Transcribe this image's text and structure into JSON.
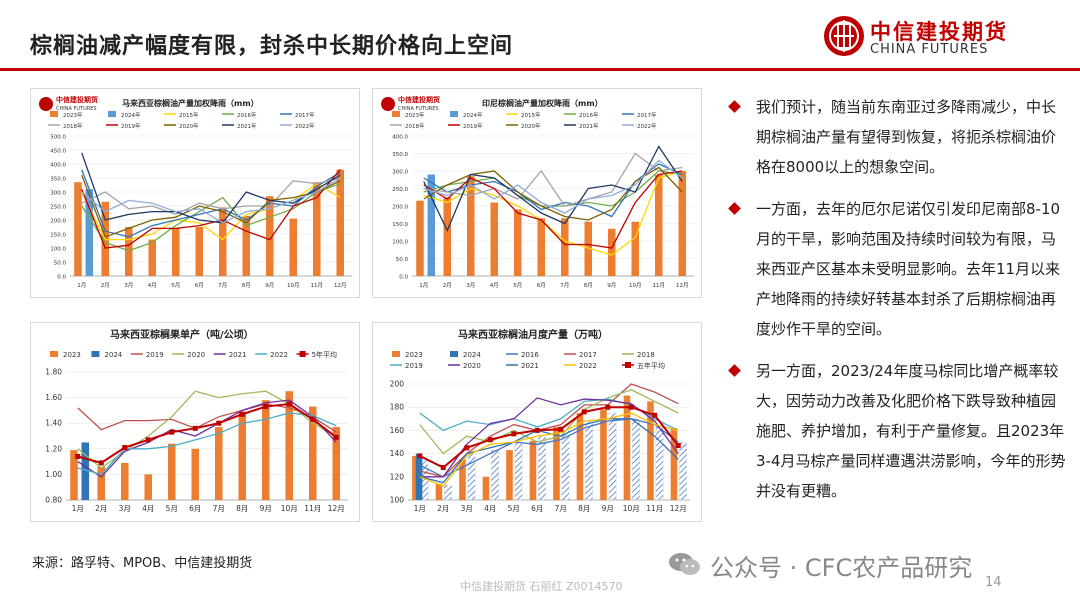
{
  "header": {
    "title": "棕榈油减产幅度有限，封杀中长期价格向上空间",
    "logo_cn": "中信建投期货",
    "logo_en": "CHINA FUTURES",
    "accent": "#c00000"
  },
  "bullets": [
    "我们预计，随当前东南亚过多降雨减少，中长期棕榈油产量有望得到恢复，将扼杀棕榈油价格在8000以上的想象空间。",
    "一方面，去年的厄尔尼诺仅引发印尼南部8-10月的干旱，影响范围及持续时间较为有限，马来西亚产区基本未受明显影响。去年11月以来产地降雨的持续好转基本封杀了后期棕榈油再度炒作干旱的空间。",
    "另一方面，2023/24年度马棕同比增产概率较大，因劳动力改善及化肥价格下跌导致种植园施肥、养护增加，有利于产量修复。且2023年3-4月马棕产量同样遭遇洪涝影响，今年的形势并没有更糟。"
  ],
  "source": "来源：路孚特、MPOB、中信建投期货",
  "footer_text": "中信建投期货  石丽红  Z0014570",
  "watermark": "公众号 · CFC农产品研究",
  "page_number": "14",
  "chart_data": [
    {
      "type": "bar",
      "title": "马来西亚棕榈油产量加权降雨（mm）",
      "logo_cn": "中信建投期货",
      "logo_en": "CHINA FUTURES",
      "categories": [
        "1月",
        "2月",
        "3月",
        "4月",
        "5月",
        "6月",
        "7月",
        "8月",
        "9月",
        "10月",
        "11月",
        "12月"
      ],
      "ylim": [
        0,
        500
      ],
      "yticks": [
        "0.0",
        "50.0",
        "100.0",
        "150.0",
        "200.0",
        "250.0",
        "300.0",
        "350.0",
        "400.0",
        "450.0",
        "500.0"
      ],
      "bars": [
        {
          "name": "2023年",
          "color": "#ED7D31",
          "values": [
            335,
            265,
            175,
            130,
            170,
            175,
            245,
            215,
            285,
            205,
            335,
            380
          ]
        },
        {
          "name": "2024年",
          "color": "#5B9BD5",
          "values": [
            310,
            null,
            null,
            null,
            null,
            null,
            null,
            null,
            null,
            null,
            null,
            null
          ]
        }
      ],
      "series": [
        {
          "name": "2015年",
          "color": "#FFD700",
          "values": [
            300,
            130,
            130,
            150,
            200,
            190,
            130,
            220,
            240,
            270,
            330,
            280
          ]
        },
        {
          "name": "2016年",
          "color": "#70AD47",
          "values": [
            250,
            120,
            90,
            120,
            180,
            230,
            280,
            180,
            210,
            240,
            300,
            330
          ]
        },
        {
          "name": "2017年",
          "color": "#2E75B6",
          "values": [
            380,
            160,
            140,
            180,
            200,
            220,
            240,
            200,
            260,
            250,
            320,
            370
          ]
        },
        {
          "name": "2018年",
          "color": "#A5A5A5",
          "values": [
            260,
            300,
            240,
            250,
            220,
            260,
            240,
            250,
            250,
            340,
            330,
            350
          ]
        },
        {
          "name": "2019年",
          "color": "#C00000",
          "values": [
            310,
            100,
            110,
            170,
            170,
            180,
            200,
            160,
            130,
            250,
            280,
            380
          ]
        },
        {
          "name": "2020年",
          "color": "#7F6000",
          "values": [
            360,
            140,
            170,
            200,
            210,
            250,
            230,
            190,
            270,
            280,
            300,
            340
          ]
        },
        {
          "name": "2021年",
          "color": "#1F3864",
          "values": [
            440,
            200,
            220,
            230,
            230,
            200,
            190,
            300,
            270,
            260,
            310,
            360
          ]
        },
        {
          "name": "2022年",
          "color": "#8FAADC",
          "values": [
            300,
            230,
            270,
            260,
            230,
            240,
            190,
            230,
            240,
            270,
            300,
            350
          ]
        }
      ]
    },
    {
      "type": "bar",
      "title": "印尼棕榈油产量加权降雨（mm）",
      "logo_cn": "中信建投期货",
      "logo_en": "CHINA FUTURES",
      "categories": [
        "1月",
        "2月",
        "3月",
        "4月",
        "5月",
        "6月",
        "7月",
        "8月",
        "9月",
        "10月",
        "11月",
        "12月"
      ],
      "ylim": [
        0,
        400
      ],
      "yticks": [
        "0.0",
        "50.0",
        "100.0",
        "150.0",
        "200.0",
        "250.0",
        "300.0",
        "350.0",
        "400.0"
      ],
      "bars": [
        {
          "name": "2023年",
          "color": "#ED7D31",
          "values": [
            215,
            225,
            285,
            210,
            190,
            165,
            165,
            155,
            135,
            155,
            290,
            300
          ]
        },
        {
          "name": "2024年",
          "color": "#5B9BD5",
          "values": [
            290,
            null,
            null,
            null,
            null,
            null,
            null,
            null,
            null,
            null,
            null,
            null
          ]
        }
      ],
      "series": [
        {
          "name": "2015年",
          "color": "#FFD700",
          "values": [
            230,
            210,
            250,
            230,
            200,
            160,
            100,
            80,
            60,
            110,
            280,
            300
          ]
        },
        {
          "name": "2016年",
          "color": "#70AD47",
          "values": [
            240,
            260,
            270,
            280,
            230,
            200,
            200,
            210,
            200,
            240,
            300,
            290
          ]
        },
        {
          "name": "2017年",
          "color": "#2E75B6",
          "values": [
            280,
            240,
            260,
            270,
            240,
            190,
            210,
            200,
            170,
            270,
            320,
            290
          ]
        },
        {
          "name": "2018年",
          "color": "#A5A5A5",
          "values": [
            250,
            240,
            230,
            250,
            220,
            300,
            200,
            220,
            240,
            350,
            300,
            310
          ]
        },
        {
          "name": "2019年",
          "color": "#C00000",
          "values": [
            260,
            220,
            280,
            250,
            180,
            160,
            90,
            90,
            80,
            210,
            290,
            300
          ]
        },
        {
          "name": "2020年",
          "color": "#7F6000",
          "values": [
            220,
            260,
            290,
            300,
            240,
            200,
            170,
            160,
            190,
            270,
            310,
            240
          ]
        },
        {
          "name": "2021年",
          "color": "#1F3864",
          "values": [
            270,
            130,
            290,
            280,
            230,
            180,
            150,
            250,
            260,
            240,
            370,
            270
          ]
        },
        {
          "name": "2022年",
          "color": "#8FAADC",
          "values": [
            250,
            230,
            260,
            220,
            260,
            210,
            180,
            220,
            230,
            260,
            330,
            280
          ]
        }
      ]
    },
    {
      "type": "bar",
      "title": "马来西亚棕榈果单产（吨/公顷）",
      "categories": [
        "1月",
        "2月",
        "3月",
        "4月",
        "5月",
        "6月",
        "7月",
        "8月",
        "9月",
        "10月",
        "11月",
        "12月"
      ],
      "ylim": [
        0.8,
        1.8
      ],
      "yticks": [
        "0.80",
        "1.00",
        "1.20",
        "1.40",
        "1.60",
        "1.80"
      ],
      "bars": [
        {
          "name": "2023",
          "color": "#ED7D31",
          "values": [
            1.19,
            1.06,
            1.09,
            1.0,
            1.24,
            1.2,
            1.37,
            1.49,
            1.58,
            1.65,
            1.53,
            1.37
          ]
        },
        {
          "name": "2024",
          "color": "#2E75B6",
          "values": [
            1.25,
            null,
            null,
            null,
            null,
            null,
            null,
            null,
            null,
            null,
            null,
            null
          ]
        }
      ],
      "series": [
        {
          "name": "2019",
          "color": "#C0504D",
          "values": [
            1.52,
            1.35,
            1.42,
            1.42,
            1.43,
            1.36,
            1.45,
            1.5,
            1.55,
            1.52,
            1.45,
            1.33
          ]
        },
        {
          "name": "2020",
          "color": "#9BBB59",
          "values": [
            1.2,
            1.05,
            1.18,
            1.3,
            1.45,
            1.65,
            1.6,
            1.63,
            1.65,
            1.55,
            1.4,
            1.3
          ]
        },
        {
          "name": "2021",
          "color": "#7030A0",
          "values": [
            1.1,
            0.98,
            1.18,
            1.25,
            1.35,
            1.3,
            1.4,
            1.5,
            1.56,
            1.58,
            1.45,
            1.25
          ]
        },
        {
          "name": "2022",
          "color": "#4BACC6",
          "values": [
            1.05,
            1.0,
            1.2,
            1.2,
            1.22,
            1.27,
            1.32,
            1.4,
            1.43,
            1.48,
            1.46,
            1.38
          ]
        },
        {
          "name": "5年平均",
          "color": "#C00000",
          "marker": true,
          "values": [
            1.14,
            1.09,
            1.21,
            1.27,
            1.33,
            1.36,
            1.4,
            1.47,
            1.53,
            1.55,
            1.43,
            1.29
          ]
        }
      ]
    },
    {
      "type": "bar",
      "title": "马来西亚棕榈油月度产量（万吨）",
      "categories": [
        "1月",
        "2月",
        "3月",
        "4月",
        "5月",
        "6月",
        "7月",
        "8月",
        "9月",
        "10月",
        "11月",
        "12月"
      ],
      "ylim": [
        100,
        200
      ],
      "yticks": [
        "100",
        "120",
        "140",
        "160",
        "180",
        "200"
      ],
      "bars": [
        {
          "name": "2023",
          "color": "#ED7D31",
          "values": [
            138,
            114,
            135,
            120,
            143,
            151,
            163,
            175,
            178,
            190,
            185,
            162
          ]
        },
        {
          "name": "2024",
          "color": "#2E75B6",
          "values": [
            140,
            null,
            null,
            null,
            null,
            null,
            null,
            null,
            null,
            null,
            null,
            null
          ]
        }
      ],
      "hatched_bar": {
        "color": "#4472C4",
        "values": [
          134,
          113,
          142,
          143,
          150,
          155,
          160,
          168,
          175,
          170,
          163,
          150
        ]
      },
      "series": [
        {
          "name": "2016",
          "color": "#4472C4",
          "values": [
            130,
            120,
            130,
            140,
            150,
            148,
            152,
            162,
            168,
            170,
            165,
            150
          ]
        },
        {
          "name": "2017",
          "color": "#C0504D",
          "values": [
            125,
            120,
            140,
            155,
            165,
            160,
            165,
            182,
            182,
            200,
            193,
            183
          ]
        },
        {
          "name": "2018",
          "color": "#9BBB59",
          "values": [
            165,
            140,
            155,
            150,
            160,
            150,
            155,
            178,
            188,
            195,
            185,
            175
          ]
        },
        {
          "name": "2019",
          "color": "#4BACC6",
          "values": [
            175,
            160,
            168,
            165,
            170,
            163,
            170,
            185,
            187,
            182,
            170,
            160
          ]
        },
        {
          "name": "2020",
          "color": "#7030A0",
          "values": [
            120,
            120,
            148,
            166,
            170,
            188,
            182,
            187,
            186,
            183,
            168,
            140
          ]
        },
        {
          "name": "2021",
          "color": "#2E75B6",
          "values": [
            120,
            115,
            140,
            145,
            150,
            160,
            155,
            165,
            170,
            170,
            155,
            135
          ]
        },
        {
          "name": "2022",
          "color": "#FFC000",
          "values": [
            120,
            112,
            138,
            148,
            150,
            155,
            158,
            168,
            170,
            175,
            165,
            160
          ]
        },
        {
          "name": "五年平均",
          "color": "#C00000",
          "marker": true,
          "values": [
            138,
            128,
            145,
            152,
            157,
            160,
            161,
            176,
            180,
            180,
            173,
            147
          ]
        }
      ]
    }
  ]
}
